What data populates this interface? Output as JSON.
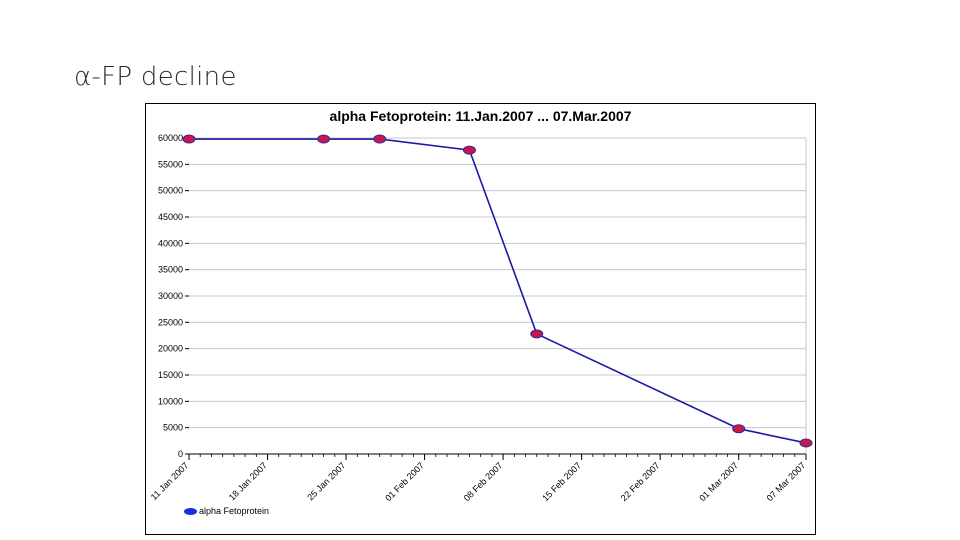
{
  "slide": {
    "title": "α-FP decline"
  },
  "chart_data": {
    "type": "line",
    "title": "alpha Fetoprotein: 11.Jan.2007 ... 07.Mar.2007",
    "xlabel": "",
    "ylabel": "",
    "x_tick_labels": [
      "11 Jan 2007",
      "18 Jan 2007",
      "25 Jan 2007",
      "01 Feb 2007",
      "08 Feb 2007",
      "15 Feb 2007",
      "22 Feb 2007",
      "01 Mar 2007",
      "07 Mar 2007"
    ],
    "x_ticks": [
      "2007-01-11",
      "2007-01-18",
      "2007-01-25",
      "2007-02-01",
      "2007-02-08",
      "2007-02-15",
      "2007-02-22",
      "2007-03-01",
      "2007-03-07"
    ],
    "y_tick_labels": [
      "0",
      "5000",
      "10000",
      "15000",
      "20000",
      "25000",
      "30000",
      "35000",
      "40000",
      "45000",
      "50000",
      "55000",
      "60000"
    ],
    "ylim": [
      0,
      60000
    ],
    "xlim": [
      "2007-01-11",
      "2007-03-07"
    ],
    "grid": true,
    "legend_position": "bottom-left",
    "series": [
      {
        "name": "alpha Fetoprotein",
        "line_color": "#1a1aa6",
        "marker_color": "#c8174a",
        "points": [
          {
            "x": "2007-01-11",
            "y": 59800
          },
          {
            "x": "2007-01-23",
            "y": 59800
          },
          {
            "x": "2007-01-28",
            "y": 59800
          },
          {
            "x": "2007-02-05",
            "y": 57700
          },
          {
            "x": "2007-02-11",
            "y": 22800
          },
          {
            "x": "2007-03-01",
            "y": 4800
          },
          {
            "x": "2007-03-07",
            "y": 2100
          }
        ]
      }
    ]
  }
}
